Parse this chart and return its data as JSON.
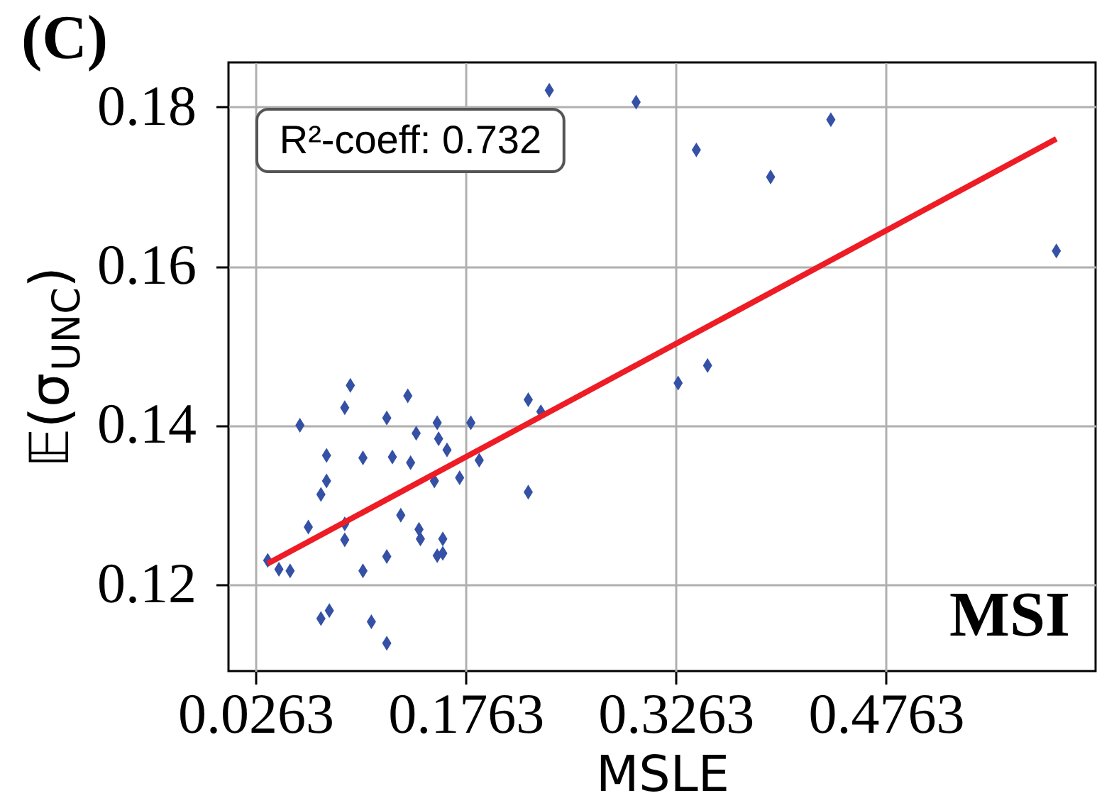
{
  "chart_data": {
    "type": "scatter",
    "title": "(C)",
    "xlabel": "MSLE",
    "ylabel": "𝔼(σ$_{UNC}$)",
    "xlim": [
      0.007,
      0.626
    ],
    "ylim": [
      0.1091,
      0.1856
    ],
    "xticks": [
      0.0263,
      0.1763,
      0.3263,
      0.4763
    ],
    "yticks": [
      0.12,
      0.14,
      0.16,
      0.18
    ],
    "grid": true,
    "marker": "diamond",
    "annotations": [
      "R²-coeff:  0.732",
      "MSI"
    ],
    "series": [
      {
        "color": "#3451a6",
        "x": [
          0.236,
          0.298,
          0.341,
          0.394,
          0.437,
          0.598,
          0.328,
          0.349,
          0.094,
          0.09,
          0.135,
          0.221,
          0.23,
          0.058,
          0.12,
          0.156,
          0.18,
          0.141,
          0.157,
          0.163,
          0.077,
          0.103,
          0.124,
          0.137,
          0.186,
          0.154,
          0.172,
          0.077,
          0.073,
          0.221,
          0.13,
          0.064,
          0.09,
          0.09,
          0.143,
          0.144,
          0.16,
          0.156,
          0.16,
          0.12,
          0.035,
          0.043,
          0.051,
          0.103,
          0.073,
          0.079,
          0.109,
          0.12
        ],
        "values": [
          0.1821,
          0.1806,
          0.1746,
          0.1712,
          0.1784,
          0.1619,
          0.1453,
          0.1475,
          0.145,
          0.1422,
          0.1437,
          0.1432,
          0.1417,
          0.14,
          0.1409,
          0.1403,
          0.1403,
          0.139,
          0.1383,
          0.1369,
          0.1362,
          0.1359,
          0.136,
          0.1353,
          0.1356,
          0.133,
          0.1334,
          0.133,
          0.1313,
          0.1316,
          0.1287,
          0.1272,
          0.1276,
          0.1256,
          0.1269,
          0.1257,
          0.1257,
          0.1236,
          0.1239,
          0.1235,
          0.123,
          0.1219,
          0.1217,
          0.1217,
          0.1157,
          0.1167,
          0.1153,
          0.1126
        ]
      },
      {
        "type": "line",
        "color": "#ee1c25",
        "marker": "none",
        "line_style": "solid",
        "x": [
          0.035,
          0.598
        ],
        "values": [
          0.1226,
          0.176
        ]
      }
    ]
  }
}
